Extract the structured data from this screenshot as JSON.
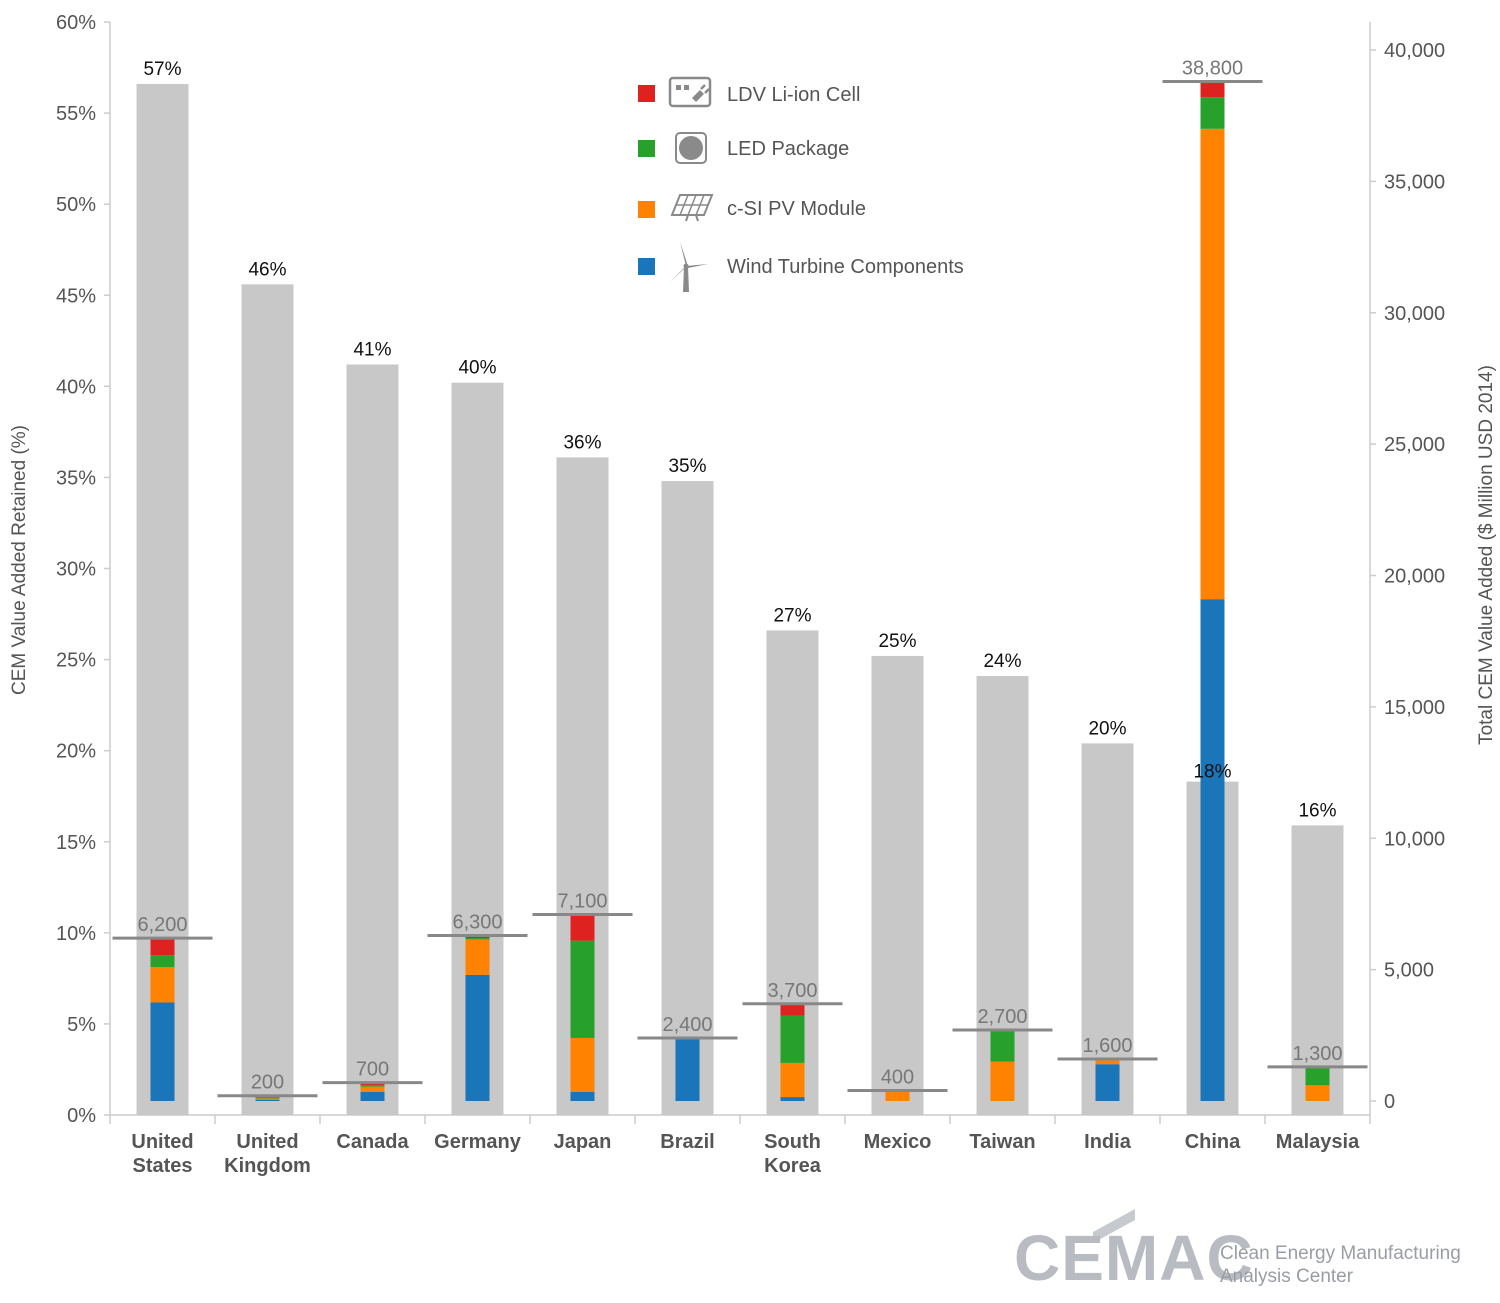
{
  "chart_data": {
    "type": "bar",
    "ylabel": "CEM Value Added Retained (%)",
    "y2label": "Total CEM Value Added ($ Million USD 2014)",
    "ylim": [
      0,
      60
    ],
    "y2lim": [
      0,
      41000
    ],
    "yticks": [
      "0%",
      "5%",
      "10%",
      "15%",
      "20%",
      "25%",
      "30%",
      "35%",
      "40%",
      "45%",
      "50%",
      "55%",
      "60%"
    ],
    "y2ticks": [
      "0",
      "5,000",
      "10,000",
      "15,000",
      "20,000",
      "25,000",
      "30,000",
      "35,000",
      "40,000"
    ],
    "categories": [
      "United States",
      "United Kingdom",
      "Canada",
      "Germany",
      "Japan",
      "Brazil",
      "South Korea",
      "Mexico",
      "Taiwan",
      "India",
      "China",
      "Malaysia"
    ],
    "category_lines": [
      [
        "United",
        "States"
      ],
      [
        "United",
        "Kingdom"
      ],
      [
        "Canada"
      ],
      [
        "Germany"
      ],
      [
        "Japan"
      ],
      [
        "Brazil"
      ],
      [
        "South",
        "Korea"
      ],
      [
        "Mexico"
      ],
      [
        "Taiwan"
      ],
      [
        "India"
      ],
      [
        "China"
      ],
      [
        "Malaysia"
      ]
    ],
    "retained_pct": [
      56.6,
      45.6,
      41.2,
      40.2,
      36.1,
      34.8,
      26.6,
      25.2,
      24.1,
      20.4,
      18.3,
      15.9
    ],
    "retained_pct_labels": [
      "57%",
      "46%",
      "41%",
      "40%",
      "36%",
      "35%",
      "27%",
      "25%",
      "24%",
      "20%",
      "18%",
      "16%"
    ],
    "totals": [
      6200,
      200,
      700,
      6300,
      7100,
      2400,
      3700,
      400,
      2700,
      1600,
      38800,
      1300
    ],
    "total_labels": [
      "6,200",
      "200",
      "700",
      "6,300",
      "7,100",
      "2,400",
      "3,700",
      "400",
      "2,700",
      "1,600",
      "38,800",
      "1,300"
    ],
    "series": [
      {
        "name": "Wind Turbine Components",
        "color": "#1a75b9",
        "values": [
          3750,
          50,
          350,
          4800,
          350,
          2350,
          150,
          0,
          0,
          1400,
          19100,
          0
        ]
      },
      {
        "name": "c-SI PV Module",
        "color": "#ff8200",
        "values": [
          1350,
          50,
          200,
          1350,
          2050,
          0,
          1300,
          400,
          1500,
          150,
          17900,
          600
        ]
      },
      {
        "name": "LED Package",
        "color": "#27a12b",
        "values": [
          450,
          50,
          50,
          50,
          3700,
          0,
          1800,
          0,
          1150,
          0,
          1200,
          650
        ]
      },
      {
        "name": "LDV Li-ion Cell",
        "color": "#dd2220",
        "values": [
          650,
          50,
          50,
          100,
          1000,
          50,
          450,
          0,
          50,
          50,
          600,
          50
        ]
      }
    ],
    "legend_order": [
      "LDV Li-ion Cell",
      "LED Package",
      "c-SI PV Module",
      "Wind Turbine Components"
    ],
    "legend_icons": [
      "plug-in-car-icon",
      "led-icon",
      "solar-panel-icon",
      "wind-turbine-icon"
    ],
    "legend_position": "top-center",
    "retained_bar_color": "#c8c8c8",
    "total_marker_color": "#888888",
    "grid": false
  },
  "logo": {
    "main": "CEMAC",
    "sub_line1": "Clean Energy Manufacturing",
    "sub_line2": "Analysis Center"
  }
}
